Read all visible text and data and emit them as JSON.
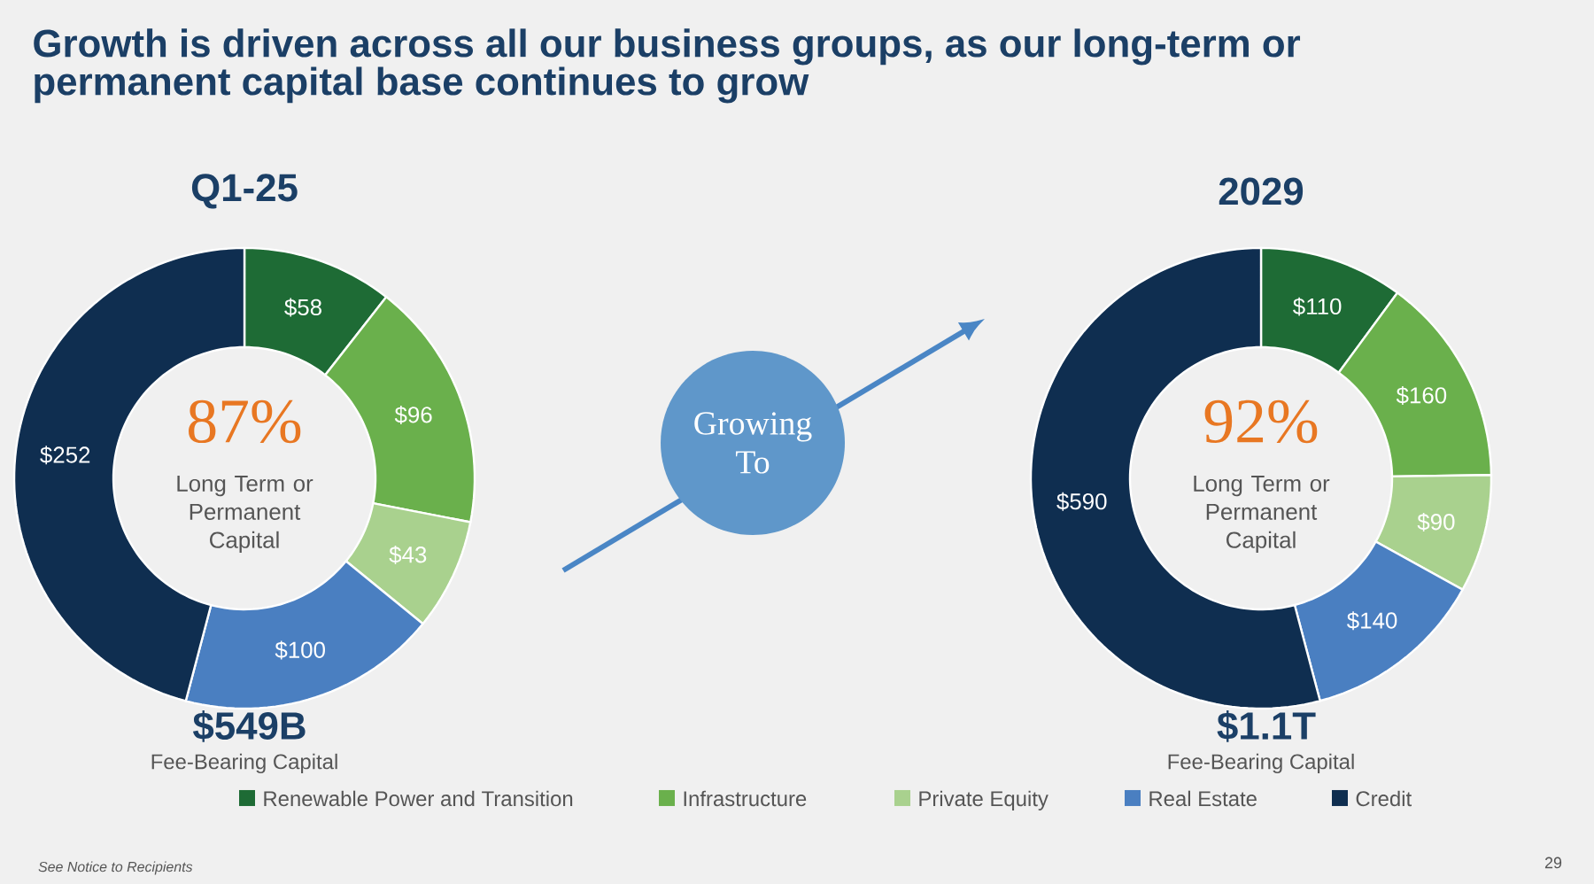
{
  "chart_data": [
    {
      "type": "donut",
      "title": "Growth is driven across all our business groups, as our long-term or permanent capital base continues to grow",
      "subtitle": "Q1-25",
      "categories": [
        "Renewable Power and Transition",
        "Infrastructure",
        "Private Equity",
        "Real Estate",
        "Credit"
      ],
      "values": [
        58,
        96,
        43,
        100,
        252
      ],
      "value_labels": [
        "$58",
        "$96",
        "$43",
        "$100",
        "$252"
      ],
      "colors": [
        "#1e6b35",
        "#6ab04c",
        "#a9d18e",
        "#4a7fc1",
        "#0f2e50"
      ],
      "legend": "bottom",
      "annotations": [
        "87%",
        "Long Term or Permanent Capital",
        "$549B",
        "Fee-Bearing Capital",
        "Growing To",
        "See Notice to Recipients",
        "29"
      ]
    },
    {
      "type": "donut",
      "subtitle": "2029",
      "categories": [
        null,
        null,
        null,
        null,
        null
      ],
      "values": [
        110,
        160,
        90,
        140,
        590
      ],
      "value_labels": [
        "$110",
        "$160",
        "$90",
        "$140",
        "$590"
      ],
      "colors": [
        "#1e6b35",
        "#6ab04c",
        "#a9d18e",
        "#4a7fc1",
        "#0f2e50"
      ],
      "annotations": [
        "92%",
        "Long Term or Permanent Capital",
        "$1.1T",
        "Fee-Bearing Capital"
      ]
    }
  ]
}
